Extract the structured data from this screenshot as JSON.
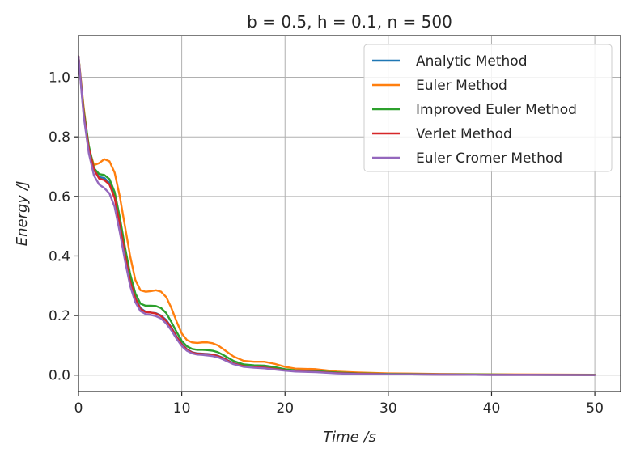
{
  "chart_data": {
    "type": "line",
    "title": "b = 0.5, h = 0.1, n = 500",
    "xlabel": "Time /s",
    "ylabel": "Energy /J",
    "xlim": [
      0,
      52.5
    ],
    "ylim": [
      -0.055,
      1.14
    ],
    "xticks": [
      "0",
      "10",
      "20",
      "30",
      "40",
      "50"
    ],
    "xtick_values": [
      0,
      10,
      20,
      30,
      40,
      50
    ],
    "yticks": [
      "0.0",
      "0.2",
      "0.4",
      "0.6",
      "0.8",
      "1.0"
    ],
    "ytick_values": [
      0,
      0.2,
      0.4,
      0.6,
      0.8,
      1.0
    ],
    "grid": true,
    "legend_position": "top-right",
    "series": [
      {
        "name": "Analytic Method",
        "color": "#1f77b4",
        "points": [
          [
            0,
            1.07
          ],
          [
            0.5,
            0.88
          ],
          [
            1,
            0.76
          ],
          [
            1.5,
            0.69
          ],
          [
            2,
            0.665
          ],
          [
            2.5,
            0.662
          ],
          [
            3,
            0.645
          ],
          [
            3.5,
            0.6
          ],
          [
            4,
            0.51
          ],
          [
            4.5,
            0.41
          ],
          [
            5,
            0.32
          ],
          [
            5.5,
            0.26
          ],
          [
            6,
            0.225
          ],
          [
            6.5,
            0.213
          ],
          [
            7,
            0.21
          ],
          [
            7.5,
            0.208
          ],
          [
            8,
            0.2
          ],
          [
            8.5,
            0.185
          ],
          [
            9,
            0.16
          ],
          [
            9.5,
            0.13
          ],
          [
            10,
            0.105
          ],
          [
            10.5,
            0.087
          ],
          [
            11,
            0.077
          ],
          [
            11.5,
            0.073
          ],
          [
            12,
            0.072
          ],
          [
            12.5,
            0.071
          ],
          [
            13,
            0.069
          ],
          [
            13.5,
            0.065
          ],
          [
            14,
            0.058
          ],
          [
            15,
            0.04
          ],
          [
            16,
            0.031
          ],
          [
            17,
            0.028
          ],
          [
            18,
            0.026
          ],
          [
            19,
            0.022
          ],
          [
            20,
            0.016
          ],
          [
            21,
            0.013
          ],
          [
            22,
            0.012
          ],
          [
            23,
            0.011
          ],
          [
            24,
            0.009
          ],
          [
            25,
            0.007
          ],
          [
            27,
            0.005
          ],
          [
            30,
            0.003
          ],
          [
            35,
            0.002
          ],
          [
            40,
            0.001
          ],
          [
            45,
            0.001
          ],
          [
            50,
            0.0005
          ]
        ]
      },
      {
        "name": "Euler Method",
        "color": "#ff7f0e",
        "points": [
          [
            0,
            1.07
          ],
          [
            0.5,
            0.9
          ],
          [
            1,
            0.76
          ],
          [
            1.5,
            0.705
          ],
          [
            2,
            0.712
          ],
          [
            2.5,
            0.725
          ],
          [
            3,
            0.718
          ],
          [
            3.5,
            0.68
          ],
          [
            4,
            0.6
          ],
          [
            4.5,
            0.5
          ],
          [
            5,
            0.4
          ],
          [
            5.5,
            0.32
          ],
          [
            6,
            0.285
          ],
          [
            6.5,
            0.28
          ],
          [
            7,
            0.282
          ],
          [
            7.5,
            0.285
          ],
          [
            8,
            0.28
          ],
          [
            8.5,
            0.262
          ],
          [
            9,
            0.225
          ],
          [
            9.5,
            0.18
          ],
          [
            10,
            0.14
          ],
          [
            10.5,
            0.118
          ],
          [
            11,
            0.11
          ],
          [
            11.5,
            0.108
          ],
          [
            12,
            0.11
          ],
          [
            12.5,
            0.11
          ],
          [
            13,
            0.107
          ],
          [
            13.5,
            0.1
          ],
          [
            14,
            0.088
          ],
          [
            15,
            0.063
          ],
          [
            16,
            0.048
          ],
          [
            17,
            0.045
          ],
          [
            18,
            0.045
          ],
          [
            19,
            0.038
          ],
          [
            20,
            0.028
          ],
          [
            21,
            0.022
          ],
          [
            22,
            0.021
          ],
          [
            23,
            0.02
          ],
          [
            24,
            0.016
          ],
          [
            25,
            0.012
          ],
          [
            27,
            0.009
          ],
          [
            30,
            0.006
          ],
          [
            35,
            0.004
          ],
          [
            40,
            0.003
          ],
          [
            45,
            0.002
          ],
          [
            50,
            0.0015
          ]
        ]
      },
      {
        "name": "Improved Euler Method",
        "color": "#2ca02c",
        "points": [
          [
            0,
            1.07
          ],
          [
            0.5,
            0.89
          ],
          [
            1,
            0.77
          ],
          [
            1.5,
            0.695
          ],
          [
            2,
            0.675
          ],
          [
            2.5,
            0.672
          ],
          [
            3,
            0.658
          ],
          [
            3.5,
            0.615
          ],
          [
            4,
            0.53
          ],
          [
            4.5,
            0.43
          ],
          [
            5,
            0.34
          ],
          [
            5.5,
            0.275
          ],
          [
            6,
            0.24
          ],
          [
            6.5,
            0.233
          ],
          [
            7,
            0.233
          ],
          [
            7.5,
            0.232
          ],
          [
            8,
            0.225
          ],
          [
            8.5,
            0.208
          ],
          [
            9,
            0.178
          ],
          [
            9.5,
            0.145
          ],
          [
            10,
            0.115
          ],
          [
            10.5,
            0.097
          ],
          [
            11,
            0.088
          ],
          [
            11.5,
            0.085
          ],
          [
            12,
            0.085
          ],
          [
            12.5,
            0.084
          ],
          [
            13,
            0.082
          ],
          [
            13.5,
            0.077
          ],
          [
            14,
            0.068
          ],
          [
            15,
            0.048
          ],
          [
            16,
            0.036
          ],
          [
            17,
            0.033
          ],
          [
            18,
            0.032
          ],
          [
            19,
            0.027
          ],
          [
            20,
            0.02
          ],
          [
            21,
            0.016
          ],
          [
            22,
            0.015
          ],
          [
            23,
            0.014
          ],
          [
            24,
            0.011
          ],
          [
            25,
            0.009
          ],
          [
            27,
            0.006
          ],
          [
            30,
            0.004
          ],
          [
            35,
            0.003
          ],
          [
            40,
            0.002
          ],
          [
            45,
            0.001
          ],
          [
            50,
            0.001
          ]
        ]
      },
      {
        "name": "Verlet Method",
        "color": "#d62728",
        "points": [
          [
            0,
            1.07
          ],
          [
            0.5,
            0.88
          ],
          [
            1,
            0.76
          ],
          [
            1.5,
            0.69
          ],
          [
            2,
            0.66
          ],
          [
            2.5,
            0.655
          ],
          [
            3,
            0.64
          ],
          [
            3.5,
            0.595
          ],
          [
            4,
            0.505
          ],
          [
            4.5,
            0.405
          ],
          [
            5,
            0.315
          ],
          [
            5.5,
            0.258
          ],
          [
            6,
            0.222
          ],
          [
            6.5,
            0.212
          ],
          [
            7,
            0.21
          ],
          [
            7.5,
            0.207
          ],
          [
            8,
            0.198
          ],
          [
            8.5,
            0.182
          ],
          [
            9,
            0.158
          ],
          [
            9.5,
            0.128
          ],
          [
            10,
            0.103
          ],
          [
            10.5,
            0.086
          ],
          [
            11,
            0.076
          ],
          [
            11.5,
            0.072
          ],
          [
            12,
            0.071
          ],
          [
            12.5,
            0.07
          ],
          [
            13,
            0.068
          ],
          [
            13.5,
            0.064
          ],
          [
            14,
            0.057
          ],
          [
            15,
            0.039
          ],
          [
            16,
            0.03
          ],
          [
            17,
            0.027
          ],
          [
            18,
            0.025
          ],
          [
            19,
            0.021
          ],
          [
            20,
            0.016
          ],
          [
            21,
            0.013
          ],
          [
            22,
            0.012
          ],
          [
            23,
            0.011
          ],
          [
            24,
            0.009
          ],
          [
            25,
            0.007
          ],
          [
            27,
            0.005
          ],
          [
            30,
            0.003
          ],
          [
            35,
            0.002
          ],
          [
            40,
            0.001
          ],
          [
            45,
            0.001
          ],
          [
            50,
            0.0005
          ]
        ]
      },
      {
        "name": "Euler Cromer Method",
        "color": "#9467bd",
        "points": [
          [
            0,
            1.07
          ],
          [
            0.5,
            0.87
          ],
          [
            1,
            0.745
          ],
          [
            1.5,
            0.67
          ],
          [
            2,
            0.64
          ],
          [
            2.5,
            0.628
          ],
          [
            3,
            0.61
          ],
          [
            3.5,
            0.565
          ],
          [
            4,
            0.48
          ],
          [
            4.5,
            0.385
          ],
          [
            5,
            0.3
          ],
          [
            5.5,
            0.245
          ],
          [
            6,
            0.215
          ],
          [
            6.5,
            0.205
          ],
          [
            7,
            0.202
          ],
          [
            7.5,
            0.198
          ],
          [
            8,
            0.19
          ],
          [
            8.5,
            0.173
          ],
          [
            9,
            0.15
          ],
          [
            9.5,
            0.122
          ],
          [
            10,
            0.098
          ],
          [
            10.5,
            0.082
          ],
          [
            11,
            0.073
          ],
          [
            11.5,
            0.069
          ],
          [
            12,
            0.068
          ],
          [
            12.5,
            0.066
          ],
          [
            13,
            0.064
          ],
          [
            13.5,
            0.06
          ],
          [
            14,
            0.053
          ],
          [
            15,
            0.037
          ],
          [
            16,
            0.028
          ],
          [
            17,
            0.025
          ],
          [
            18,
            0.023
          ],
          [
            19,
            0.019
          ],
          [
            20,
            0.015
          ],
          [
            21,
            0.012
          ],
          [
            22,
            0.011
          ],
          [
            23,
            0.01
          ],
          [
            24,
            0.008
          ],
          [
            25,
            0.006
          ],
          [
            27,
            0.004
          ],
          [
            30,
            0.003
          ],
          [
            35,
            0.002
          ],
          [
            40,
            0.001
          ],
          [
            45,
            0.001
          ],
          [
            50,
            0.0005
          ]
        ]
      }
    ]
  }
}
